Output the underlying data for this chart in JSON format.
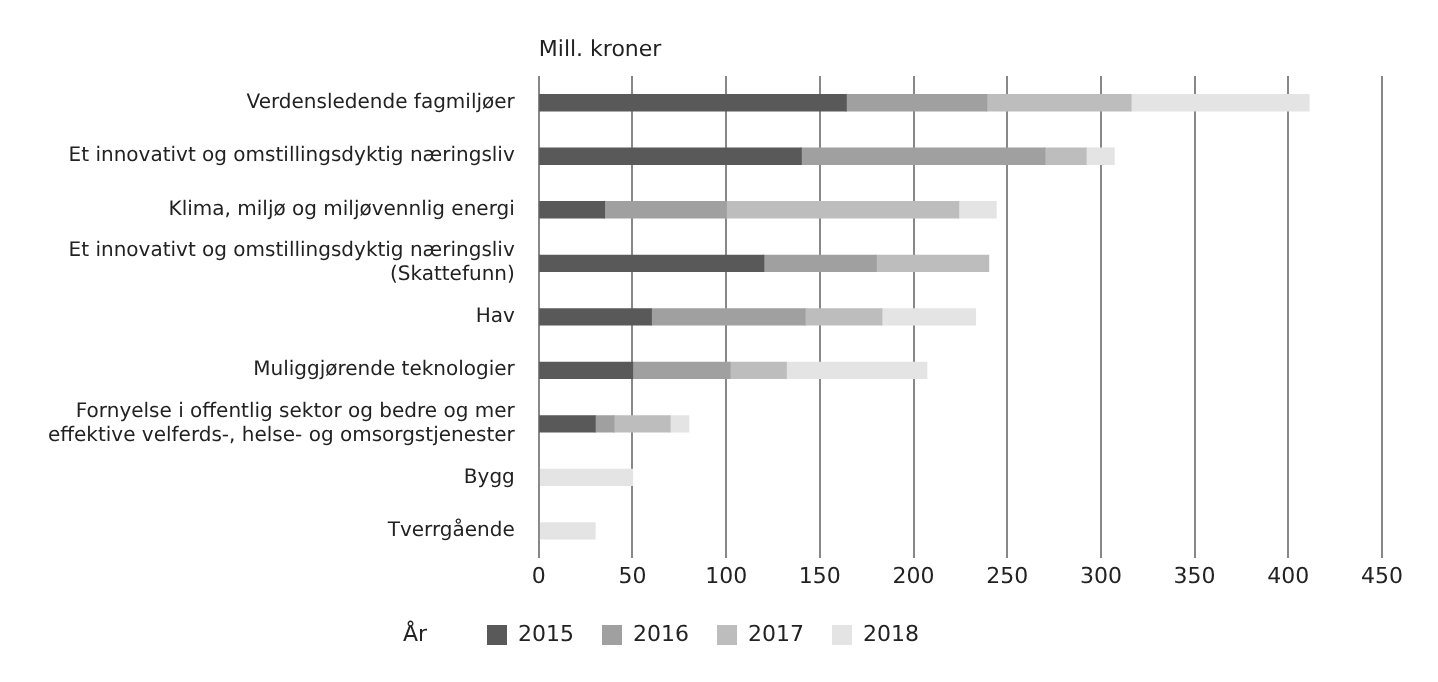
{
  "chart_data": {
    "type": "bar",
    "orientation": "horizontal",
    "stacked": true,
    "xlabel": "Mill. kroner",
    "legend_title": "År",
    "categories": [
      "Verdensledende fagmiljøer",
      "Et innovativt og omstillingsdyktig næringsliv",
      "Klima, miljø og miljøvennlig energi",
      "Et innovativt og omstillingsdyktig næringsliv (Skattefunn)",
      "Hav",
      "Muliggjørende teknologier",
      "Fornyelse i offentlig sektor og bedre og mer effektive velferds-, helse- og omsorgstjenester",
      "Bygg",
      "Tverrgående"
    ],
    "series": [
      {
        "name": "2015",
        "color": "#595959",
        "values": [
          164,
          140,
          35,
          120,
          60,
          50,
          30,
          0,
          0
        ]
      },
      {
        "name": "2016",
        "color": "#a0a0a0",
        "values": [
          75,
          130,
          65,
          60,
          82,
          52,
          10,
          0,
          0
        ]
      },
      {
        "name": "2017",
        "color": "#bdbdbd",
        "values": [
          77,
          22,
          124,
          60,
          41,
          30,
          30,
          0,
          0
        ]
      },
      {
        "name": "2018",
        "color": "#e4e4e4",
        "values": [
          95,
          15,
          20,
          0,
          50,
          75,
          10,
          50,
          30
        ]
      }
    ],
    "xlim": [
      0,
      450
    ],
    "xticks": [
      0,
      50,
      100,
      150,
      200,
      250,
      300,
      350,
      400,
      450
    ],
    "grid": "x",
    "legend": "bottom"
  }
}
